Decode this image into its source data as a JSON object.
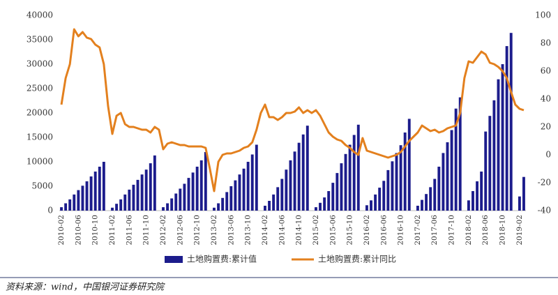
{
  "chart_data": {
    "type": "bar_line",
    "categories": [
      "2010-02",
      null,
      null,
      null,
      "2010-06",
      null,
      null,
      null,
      "2010-10",
      null,
      null,
      null,
      "2011-02",
      null,
      null,
      null,
      "2011-06",
      null,
      null,
      null,
      "2011-10",
      null,
      null,
      null,
      "2012-02",
      null,
      null,
      null,
      "2012-06",
      null,
      null,
      null,
      "2012-10",
      null,
      null,
      null,
      "2013-02",
      null,
      null,
      null,
      "2013-06",
      null,
      null,
      null,
      "2013-10",
      null,
      null,
      null,
      "2014-02",
      null,
      null,
      null,
      "2014-06",
      null,
      null,
      null,
      "2014-10",
      null,
      null,
      null,
      "2015-02",
      null,
      null,
      null,
      "2015-06",
      null,
      null,
      null,
      "2015-10",
      null,
      null,
      null,
      "2016-02",
      null,
      null,
      null,
      "2016-06",
      null,
      null,
      null,
      "2016-10",
      null,
      null,
      null,
      "2017-02",
      null,
      null,
      null,
      "2017-06",
      null,
      null,
      null,
      "2017-10",
      null,
      null,
      null,
      "2018-02",
      null,
      null,
      null,
      "2018-06",
      null,
      null,
      null,
      "2018-10",
      null,
      null,
      null,
      "2019-02",
      null
    ],
    "series": [
      {
        "name": "土地购置费:累计值",
        "color": "#1c1c8c",
        "kind": "bar",
        "axis": "y",
        "values": [
          700,
          1500,
          2300,
          3300,
          4200,
          5100,
          6000,
          7000,
          8000,
          9000,
          10000,
          null,
          600,
          1400,
          2300,
          3300,
          4300,
          5300,
          6300,
          7400,
          8400,
          9700,
          11300,
          null,
          700,
          1500,
          2500,
          3500,
          4500,
          5500,
          6700,
          7800,
          9000,
          10300,
          12000,
          null,
          600,
          1500,
          2600,
          3800,
          5000,
          6200,
          7400,
          8600,
          10000,
          11500,
          13500,
          null,
          1000,
          2000,
          3300,
          4800,
          6500,
          8400,
          10300,
          12100,
          13900,
          15600,
          17400,
          null,
          700,
          1600,
          2700,
          4000,
          5700,
          7700,
          9700,
          11600,
          13500,
          15500,
          17600,
          null,
          1100,
          2100,
          3300,
          4700,
          6100,
          8300,
          10100,
          11800,
          13400,
          16000,
          18800,
          null,
          1000,
          2200,
          3400,
          4800,
          6500,
          9000,
          11800,
          14000,
          16500,
          20900,
          23200,
          null,
          2100,
          4000,
          6000,
          8000,
          16200,
          19400,
          22600,
          26900,
          30000,
          33700,
          36400,
          null,
          2900,
          6900
        ]
      },
      {
        "name": "土地购置费:累计同比",
        "color": "#e3801e",
        "kind": "line",
        "axis": "y2",
        "values": [
          36,
          55,
          65,
          90,
          85,
          88,
          84,
          83,
          79,
          77,
          65,
          35,
          15,
          28,
          30,
          22,
          20,
          20,
          19,
          18,
          18,
          16,
          20,
          18,
          4,
          8,
          9,
          8,
          7,
          7,
          6,
          6,
          6,
          6,
          5,
          -10,
          -26,
          -5,
          0,
          1,
          1,
          2,
          3,
          5,
          6,
          9,
          18,
          30,
          36,
          27,
          27,
          25,
          27,
          30,
          30,
          31,
          34,
          30,
          32,
          30,
          32,
          28,
          22,
          16,
          13,
          11,
          10,
          7,
          5,
          2,
          0,
          12,
          3,
          2,
          1,
          0,
          -1,
          -2,
          -1,
          0,
          2,
          6,
          10,
          13,
          16,
          21,
          19,
          17,
          18,
          16,
          17,
          19,
          20,
          21,
          30,
          55,
          67,
          66,
          70,
          74,
          72,
          66,
          65,
          63,
          60,
          55,
          45,
          36,
          33,
          32
        ]
      }
    ],
    "ylim": [
      0,
      40000
    ],
    "yticks": [
      0,
      5000,
      10000,
      15000,
      20000,
      25000,
      30000,
      35000,
      40000
    ],
    "y2lim": [
      -40,
      100
    ],
    "y2ticks": [
      -40,
      -20,
      0,
      20,
      40,
      60,
      80,
      100
    ],
    "grid": false,
    "source": "资料来源：wind，中国银河证券研究院"
  }
}
